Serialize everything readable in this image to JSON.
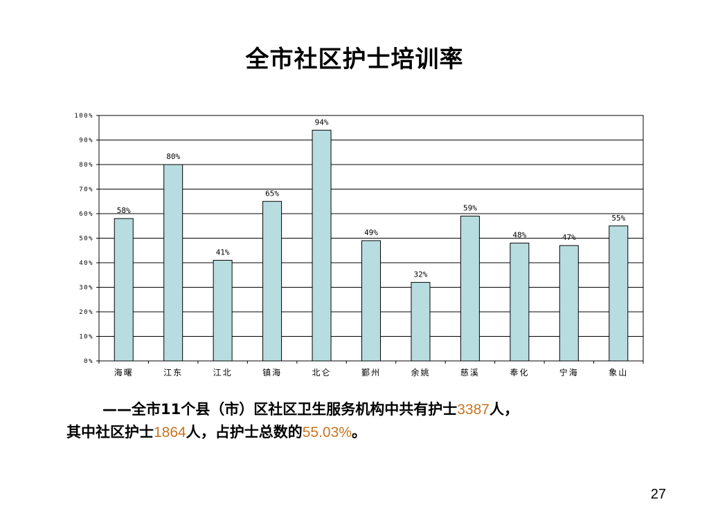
{
  "slide": {
    "title": "全市社区护士培训率",
    "caption": {
      "line1_prefix": "——全市11个县（市）区社区卫生服务机构中共有护士",
      "line1_num": "3387",
      "line1_suffix": "人，",
      "line2_prefix": "其中社区护士",
      "line2_num": "1864",
      "line2_mid": "人，占护士总数的",
      "line2_pct": "55.03%",
      "line2_suffix": "。"
    },
    "page_number": "27"
  },
  "chart_data": {
    "type": "bar",
    "categories": [
      "海曙",
      "江东",
      "江北",
      "镇海",
      "北仑",
      "鄞州",
      "余姚",
      "慈溪",
      "奉化",
      "宁海",
      "象山"
    ],
    "values": [
      58,
      80,
      41,
      65,
      94,
      49,
      32,
      59,
      48,
      47,
      55
    ],
    "data_labels": [
      "58%",
      "80%",
      "41%",
      "65%",
      "94%",
      "49%",
      "32%",
      "59%",
      "48%",
      "47%",
      "55%"
    ],
    "y_ticks": [
      "0%",
      "10%",
      "20%",
      "30%",
      "40%",
      "50%",
      "60%",
      "70%",
      "80%",
      "90%",
      "100%"
    ],
    "ylim": [
      0,
      100
    ],
    "grid": true,
    "bar_color": "#b8dde0",
    "title": "",
    "xlabel": "",
    "ylabel": ""
  }
}
